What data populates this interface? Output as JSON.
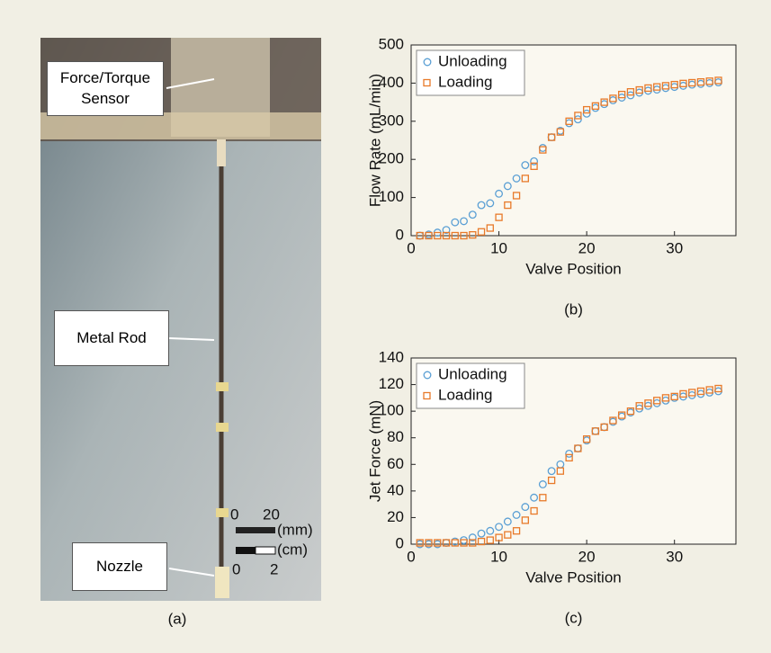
{
  "photo": {
    "caption": "(a)",
    "labels": [
      "Force/Torque Sensor",
      "Metal Rod",
      "Nozzle"
    ],
    "scale": {
      "mm_ticks": [
        "0",
        "20"
      ],
      "mm_unit": "(mm)",
      "cm_unit": "(cm)",
      "cm_ticks": [
        "0",
        "2"
      ]
    }
  },
  "chart_data": [
    {
      "type": "scatter",
      "caption": "(b)",
      "xlabel": "Valve Position",
      "ylabel": "Flow Rate (mL/min)",
      "xlim": [
        0,
        37
      ],
      "xticks": [
        0,
        10,
        20,
        30
      ],
      "ylim": [
        0,
        500
      ],
      "yticks": [
        0,
        100,
        200,
        300,
        400,
        500
      ],
      "legend": "upper left",
      "x": [
        1,
        2,
        3,
        4,
        5,
        6,
        7,
        8,
        9,
        10,
        11,
        12,
        13,
        14,
        15,
        16,
        17,
        18,
        19,
        20,
        21,
        22,
        23,
        24,
        25,
        26,
        27,
        28,
        29,
        30,
        31,
        32,
        33,
        34,
        35
      ],
      "series": [
        {
          "name": "Unloading",
          "color": "#5a9fd4",
          "marker": "circle",
          "values": [
            0,
            3,
            8,
            15,
            35,
            38,
            55,
            80,
            85,
            110,
            130,
            150,
            185,
            195,
            230,
            258,
            275,
            295,
            305,
            320,
            335,
            345,
            355,
            362,
            368,
            375,
            380,
            383,
            387,
            390,
            393,
            396,
            398,
            400,
            402
          ]
        },
        {
          "name": "Loading",
          "color": "#e87a2a",
          "marker": "square",
          "values": [
            0,
            0,
            0,
            0,
            0,
            0,
            2,
            10,
            20,
            48,
            80,
            105,
            150,
            182,
            225,
            258,
            272,
            300,
            315,
            330,
            340,
            350,
            360,
            370,
            377,
            382,
            387,
            390,
            393,
            396,
            399,
            401,
            403,
            405,
            407
          ]
        }
      ]
    },
    {
      "type": "scatter",
      "caption": "(c)",
      "xlabel": "Valve Position",
      "ylabel": "Jet Force (mN)",
      "xlim": [
        0,
        37
      ],
      "xticks": [
        0,
        10,
        20,
        30
      ],
      "ylim": [
        0,
        140
      ],
      "yticks": [
        0,
        20,
        40,
        60,
        80,
        100,
        120,
        140
      ],
      "legend": "upper left",
      "x": [
        1,
        2,
        3,
        4,
        5,
        6,
        7,
        8,
        9,
        10,
        11,
        12,
        13,
        14,
        15,
        16,
        17,
        18,
        19,
        20,
        21,
        22,
        23,
        24,
        25,
        26,
        27,
        28,
        29,
        30,
        31,
        32,
        33,
        34,
        35
      ],
      "series": [
        {
          "name": "Unloading",
          "color": "#5a9fd4",
          "marker": "circle",
          "values": [
            0,
            0,
            0,
            1,
            2,
            3,
            5,
            8,
            10,
            13,
            17,
            22,
            28,
            35,
            45,
            55,
            60,
            68,
            72,
            78,
            85,
            88,
            92,
            96,
            99,
            102,
            104,
            106,
            108,
            110,
            111,
            112,
            113,
            114,
            115
          ]
        },
        {
          "name": "Loading",
          "color": "#e87a2a",
          "marker": "square",
          "values": [
            1,
            1,
            1,
            1,
            1,
            1,
            1,
            2,
            3,
            5,
            7,
            10,
            18,
            25,
            35,
            48,
            55,
            65,
            72,
            79,
            85,
            88,
            93,
            97,
            100,
            104,
            106,
            108,
            110,
            111,
            113,
            114,
            115,
            116,
            117
          ]
        }
      ]
    }
  ]
}
